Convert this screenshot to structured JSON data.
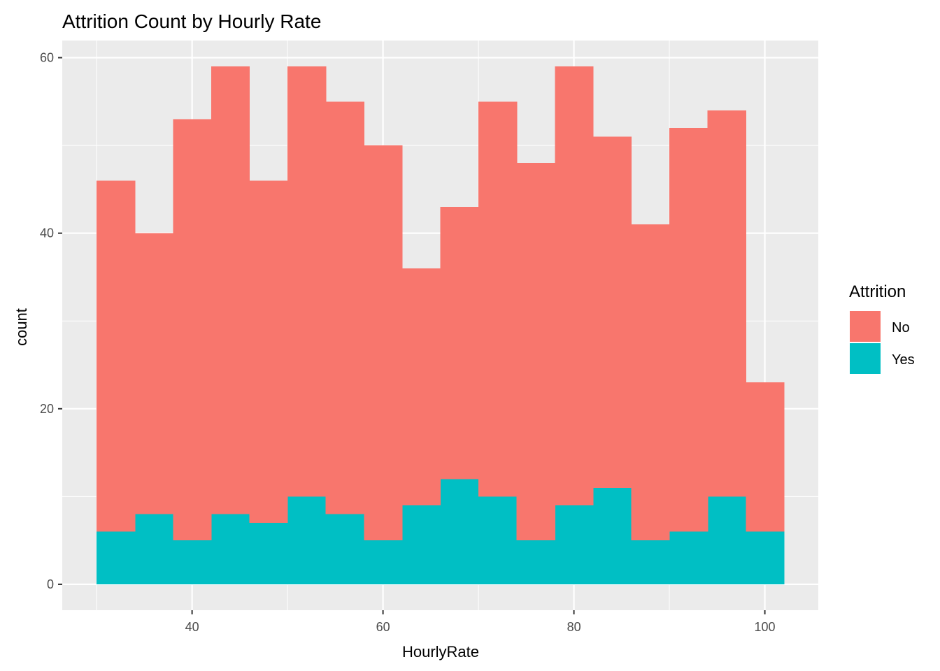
{
  "chart_data": {
    "type": "bar",
    "subtype": "stacked-histogram",
    "title": "Attrition Count by Hourly Rate",
    "xlabel": "HourlyRate",
    "ylabel": "count",
    "xlim": [
      26.4,
      105.6
    ],
    "ylim": [
      -2.95,
      61.95
    ],
    "x_ticks": [
      40,
      60,
      80,
      100
    ],
    "y_ticks": [
      0,
      20,
      40,
      60
    ],
    "x_minor_ticks": [
      30,
      50,
      70,
      90
    ],
    "y_minor_ticks": [
      10,
      30,
      50
    ],
    "bin_width": 4,
    "bins": [
      [
        30,
        34
      ],
      [
        34,
        38
      ],
      [
        38,
        42
      ],
      [
        42,
        46
      ],
      [
        46,
        50
      ],
      [
        50,
        54
      ],
      [
        54,
        58
      ],
      [
        58,
        62
      ],
      [
        62,
        66
      ],
      [
        66,
        70
      ],
      [
        70,
        74
      ],
      [
        74,
        78
      ],
      [
        78,
        82
      ],
      [
        82,
        86
      ],
      [
        86,
        90
      ],
      [
        90,
        94
      ],
      [
        94,
        98
      ],
      [
        98,
        102
      ]
    ],
    "series": [
      {
        "name": "Yes",
        "color": "#00BFC4",
        "values": [
          6,
          8,
          5,
          8,
          7,
          10,
          8,
          5,
          9,
          12,
          10,
          5,
          9,
          11,
          5,
          6,
          10,
          6
        ]
      },
      {
        "name": "No",
        "color": "#F8766D",
        "values": [
          40,
          32,
          48,
          51,
          39,
          49,
          47,
          45,
          27,
          31,
          45,
          43,
          50,
          40,
          36,
          46,
          44,
          17
        ]
      }
    ],
    "stacked": true,
    "legend": {
      "title": "Attrition",
      "placement": "right",
      "order": [
        "No",
        "Yes"
      ]
    },
    "grid": true,
    "panel_background": "#EBEBEB",
    "grid_color": "#FFFFFF"
  }
}
